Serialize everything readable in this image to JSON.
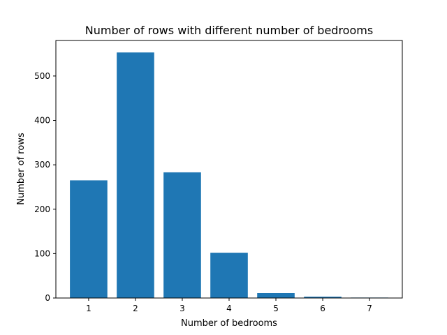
{
  "chart_data": {
    "type": "bar",
    "title": "Number of rows with different number of bedrooms",
    "xlabel": "Number of bedrooms",
    "ylabel": "Number of rows",
    "categories": [
      "1",
      "2",
      "3",
      "4",
      "5",
      "6",
      "7"
    ],
    "values": [
      265,
      553,
      283,
      102,
      11,
      3,
      1
    ],
    "xlim": [
      0.3,
      7.7
    ],
    "ylim": [
      0,
      580
    ],
    "yticks": [
      0,
      100,
      200,
      300,
      400,
      500
    ],
    "bar_color": "#1f77b4",
    "grid": false,
    "legend": "none"
  }
}
